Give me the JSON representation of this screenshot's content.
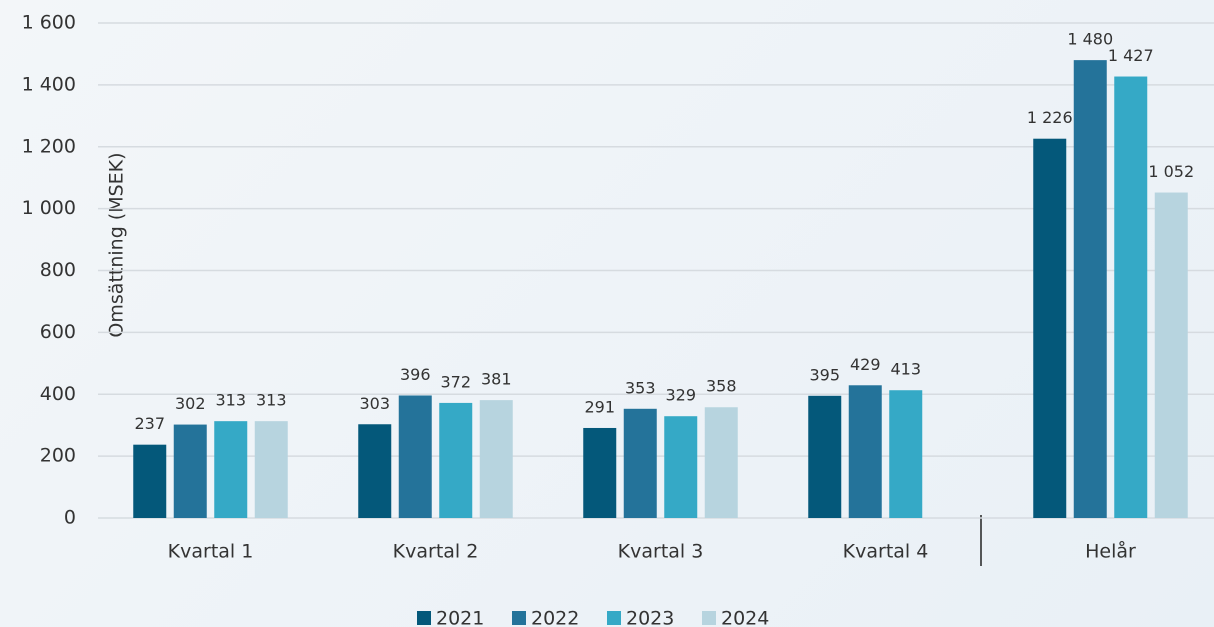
{
  "chart_data": {
    "type": "bar",
    "y_label": "Omsättning (MSEK)",
    "categories": [
      "Kvartal 1",
      "Kvartal 2",
      "Kvartal 3",
      "Kvartal 4",
      "Helår"
    ],
    "series": [
      {
        "name": "2021",
        "color": "#04587a",
        "values": [
          237,
          303,
          291,
          395,
          1226
        ],
        "value_labels": [
          "237",
          "303",
          "291",
          "395",
          "1 226"
        ]
      },
      {
        "name": "2022",
        "color": "#24739a",
        "values": [
          302,
          396,
          353,
          429,
          1480
        ],
        "value_labels": [
          "302",
          "396",
          "353",
          "429",
          "1 480"
        ]
      },
      {
        "name": "2023",
        "color": "#35a9c6",
        "values": [
          313,
          372,
          329,
          413,
          1427
        ],
        "value_labels": [
          "313",
          "372",
          "329",
          "413",
          "1 427"
        ]
      },
      {
        "name": "2024",
        "color": "#b7d4df",
        "values": [
          313,
          381,
          358,
          null,
          1052
        ],
        "value_labels": [
          "313",
          "381",
          "358",
          null,
          "1 052"
        ]
      }
    ],
    "ylim": [
      0,
      1600
    ],
    "yticks": [
      0,
      200,
      400,
      600,
      800,
      {
        "value": 1000,
        "label": "1 000"
      },
      {
        "value": 1200,
        "label": "1 200"
      },
      {
        "value": 1400,
        "label": "1 400"
      },
      {
        "value": 1600,
        "label": "1 600"
      }
    ],
    "grid": true,
    "legend": "bottom"
  }
}
